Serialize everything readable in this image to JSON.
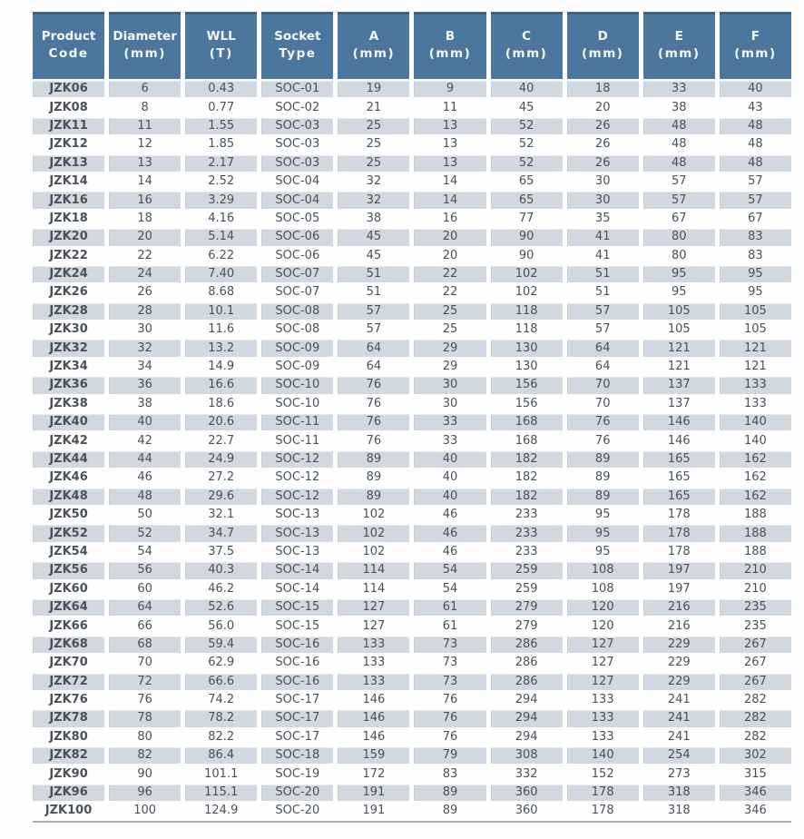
{
  "table": {
    "columns": [
      {
        "key": "product-code",
        "label": "Product",
        "sub": "Code"
      },
      {
        "key": "diameter",
        "label": "Diameter",
        "sub": "(mm)"
      },
      {
        "key": "wll",
        "label": "WLL",
        "sub": "(T)"
      },
      {
        "key": "socket-type",
        "label": "Socket",
        "sub": "Type"
      },
      {
        "key": "dim-a",
        "label": "A",
        "sub": "(mm)"
      },
      {
        "key": "dim-b",
        "label": "B",
        "sub": "(mm)"
      },
      {
        "key": "dim-c",
        "label": "C",
        "sub": "(mm)"
      },
      {
        "key": "dim-d",
        "label": "D",
        "sub": "(mm)"
      },
      {
        "key": "dim-e",
        "label": "E",
        "sub": "(mm)"
      },
      {
        "key": "dim-f",
        "label": "F",
        "sub": "(mm)"
      }
    ],
    "rows": [
      [
        "JZK06",
        "6",
        "0.43",
        "SOC-01",
        "19",
        "9",
        "40",
        "18",
        "33",
        "40"
      ],
      [
        "JZK08",
        "8",
        "0.77",
        "SOC-02",
        "21",
        "11",
        "45",
        "20",
        "38",
        "43"
      ],
      [
        "JZK11",
        "11",
        "1.55",
        "SOC-03",
        "25",
        "13",
        "52",
        "26",
        "48",
        "48"
      ],
      [
        "JZK12",
        "12",
        "1.85",
        "SOC-03",
        "25",
        "13",
        "52",
        "26",
        "48",
        "48"
      ],
      [
        "JZK13",
        "13",
        "2.17",
        "SOC-03",
        "25",
        "13",
        "52",
        "26",
        "48",
        "48"
      ],
      [
        "JZK14",
        "14",
        "2.52",
        "SOC-04",
        "32",
        "14",
        "65",
        "30",
        "57",
        "57"
      ],
      [
        "JZK16",
        "16",
        "3.29",
        "SOC-04",
        "32",
        "14",
        "65",
        "30",
        "57",
        "57"
      ],
      [
        "JZK18",
        "18",
        "4.16",
        "SOC-05",
        "38",
        "16",
        "77",
        "35",
        "67",
        "67"
      ],
      [
        "JZK20",
        "20",
        "5.14",
        "SOC-06",
        "45",
        "20",
        "90",
        "41",
        "80",
        "83"
      ],
      [
        "JZK22",
        "22",
        "6.22",
        "SOC-06",
        "45",
        "20",
        "90",
        "41",
        "80",
        "83"
      ],
      [
        "JZK24",
        "24",
        "7.40",
        "SOC-07",
        "51",
        "22",
        "102",
        "51",
        "95",
        "95"
      ],
      [
        "JZK26",
        "26",
        "8.68",
        "SOC-07",
        "51",
        "22",
        "102",
        "51",
        "95",
        "95"
      ],
      [
        "JZK28",
        "28",
        "10.1",
        "SOC-08",
        "57",
        "25",
        "118",
        "57",
        "105",
        "105"
      ],
      [
        "JZK30",
        "30",
        "11.6",
        "SOC-08",
        "57",
        "25",
        "118",
        "57",
        "105",
        "105"
      ],
      [
        "JZK32",
        "32",
        "13.2",
        "SOC-09",
        "64",
        "29",
        "130",
        "64",
        "121",
        "121"
      ],
      [
        "JZK34",
        "34",
        "14.9",
        "SOC-09",
        "64",
        "29",
        "130",
        "64",
        "121",
        "121"
      ],
      [
        "JZK36",
        "36",
        "16.6",
        "SOC-10",
        "76",
        "30",
        "156",
        "70",
        "137",
        "133"
      ],
      [
        "JZK38",
        "38",
        "18.6",
        "SOC-10",
        "76",
        "30",
        "156",
        "70",
        "137",
        "133"
      ],
      [
        "JZK40",
        "40",
        "20.6",
        "SOC-11",
        "76",
        "33",
        "168",
        "76",
        "146",
        "140"
      ],
      [
        "JZK42",
        "42",
        "22.7",
        "SOC-11",
        "76",
        "33",
        "168",
        "76",
        "146",
        "140"
      ],
      [
        "JZK44",
        "44",
        "24.9",
        "SOC-12",
        "89",
        "40",
        "182",
        "89",
        "165",
        "162"
      ],
      [
        "JZK46",
        "46",
        "27.2",
        "SOC-12",
        "89",
        "40",
        "182",
        "89",
        "165",
        "162"
      ],
      [
        "JZK48",
        "48",
        "29.6",
        "SOC-12",
        "89",
        "40",
        "182",
        "89",
        "165",
        "162"
      ],
      [
        "JZK50",
        "50",
        "32.1",
        "SOC-13",
        "102",
        "46",
        "233",
        "95",
        "178",
        "188"
      ],
      [
        "JZK52",
        "52",
        "34.7",
        "SOC-13",
        "102",
        "46",
        "233",
        "95",
        "178",
        "188"
      ],
      [
        "JZK54",
        "54",
        "37.5",
        "SOC-13",
        "102",
        "46",
        "233",
        "95",
        "178",
        "188"
      ],
      [
        "JZK56",
        "56",
        "40.3",
        "SOC-14",
        "114",
        "54",
        "259",
        "108",
        "197",
        "210"
      ],
      [
        "JZK60",
        "60",
        "46.2",
        "SOC-14",
        "114",
        "54",
        "259",
        "108",
        "197",
        "210"
      ],
      [
        "JZK64",
        "64",
        "52.6",
        "SOC-15",
        "127",
        "61",
        "279",
        "120",
        "216",
        "235"
      ],
      [
        "JZK66",
        "66",
        "56.0",
        "SOC-15",
        "127",
        "61",
        "279",
        "120",
        "216",
        "235"
      ],
      [
        "JZK68",
        "68",
        "59.4",
        "SOC-16",
        "133",
        "73",
        "286",
        "127",
        "229",
        "267"
      ],
      [
        "JZK70",
        "70",
        "62.9",
        "SOC-16",
        "133",
        "73",
        "286",
        "127",
        "229",
        "267"
      ],
      [
        "JZK72",
        "72",
        "66.6",
        "SOC-16",
        "133",
        "73",
        "286",
        "127",
        "229",
        "267"
      ],
      [
        "JZK76",
        "76",
        "74.2",
        "SOC-17",
        "146",
        "76",
        "294",
        "133",
        "241",
        "282"
      ],
      [
        "JZK78",
        "78",
        "78.2",
        "SOC-17",
        "146",
        "76",
        "294",
        "133",
        "241",
        "282"
      ],
      [
        "JZK80",
        "80",
        "82.2",
        "SOC-17",
        "146",
        "76",
        "294",
        "133",
        "241",
        "282"
      ],
      [
        "JZK82",
        "82",
        "86.4",
        "SOC-18",
        "159",
        "79",
        "308",
        "140",
        "254",
        "302"
      ],
      [
        "JZK90",
        "90",
        "101.1",
        "SOC-19",
        "172",
        "83",
        "332",
        "152",
        "273",
        "315"
      ],
      [
        "JZK96",
        "96",
        "115.1",
        "SOC-20",
        "191",
        "89",
        "360",
        "178",
        "318",
        "346"
      ],
      [
        "JZK100",
        "100",
        "124.9",
        "SOC-20",
        "191",
        "89",
        "360",
        "178",
        "318",
        "346"
      ]
    ]
  },
  "colors": {
    "header_bg": "#4b769d",
    "header_text": "#f5f8fb",
    "row_shaded_bg": "#d2d8df",
    "data_text": "#4a5158",
    "code_text": "#32383e",
    "bottom_rule": "#a6abb1"
  }
}
